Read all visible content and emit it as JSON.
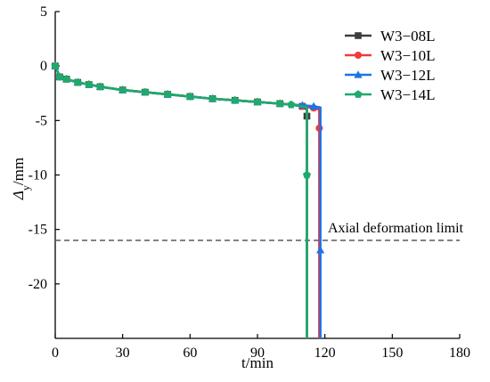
{
  "chart_data": {
    "type": "line",
    "title": "",
    "xlabel": "t/min",
    "ylabel_main": "Δ",
    "ylabel_sub": "y",
    "ylabel_unit": "/mm",
    "xlim": [
      0,
      180
    ],
    "ylim": [
      -25,
      5
    ],
    "xticks": [
      0,
      30,
      60,
      90,
      120,
      150,
      180
    ],
    "yticks": [
      5,
      0,
      -5,
      -10,
      -15,
      -20
    ],
    "grid": false,
    "legend_position": "top-right",
    "reference_line": {
      "y": -16,
      "label": "Axial deformation limit",
      "style": "dashed",
      "color": "#666666"
    },
    "series": [
      {
        "name": "W3−08L",
        "color": "#3d3d3d",
        "marker": "square",
        "x": [
          0,
          2,
          5,
          10,
          15,
          20,
          30,
          40,
          50,
          60,
          70,
          80,
          90,
          100,
          105,
          110,
          112,
          112,
          112
        ],
        "y": [
          0,
          -1.0,
          -1.2,
          -1.5,
          -1.7,
          -1.9,
          -2.2,
          -2.4,
          -2.6,
          -2.8,
          -3.0,
          -3.15,
          -3.3,
          -3.45,
          -3.55,
          -3.7,
          -3.8,
          -4.6,
          -25
        ],
        "marker_x": [
          0,
          2,
          5,
          10,
          15,
          20,
          30,
          40,
          50,
          60,
          70,
          80,
          90,
          100,
          110,
          112
        ],
        "marker_y": [
          0,
          -1.0,
          -1.2,
          -1.5,
          -1.7,
          -1.9,
          -2.2,
          -2.4,
          -2.6,
          -2.8,
          -3.0,
          -3.15,
          -3.3,
          -3.45,
          -3.7,
          -4.6
        ]
      },
      {
        "name": "W3−10L",
        "color": "#ef3b3b",
        "marker": "circle",
        "x": [
          0,
          2,
          5,
          10,
          15,
          20,
          30,
          40,
          50,
          60,
          70,
          80,
          90,
          100,
          105,
          110,
          115,
          117.5,
          117.5,
          117.5
        ],
        "y": [
          0,
          -1.0,
          -1.2,
          -1.5,
          -1.7,
          -1.9,
          -2.2,
          -2.4,
          -2.6,
          -2.8,
          -3.0,
          -3.15,
          -3.3,
          -3.45,
          -3.55,
          -3.7,
          -3.85,
          -4.0,
          -5.7,
          -25
        ],
        "marker_x": [
          0,
          2,
          5,
          10,
          15,
          20,
          30,
          40,
          50,
          60,
          70,
          80,
          90,
          100,
          110,
          115,
          117.5
        ],
        "marker_y": [
          0,
          -1.0,
          -1.2,
          -1.5,
          -1.7,
          -1.9,
          -2.2,
          -2.4,
          -2.6,
          -2.8,
          -3.0,
          -3.15,
          -3.3,
          -3.45,
          -3.7,
          -3.85,
          -5.7
        ]
      },
      {
        "name": "W3−12L",
        "color": "#1a74e8",
        "marker": "triangle",
        "x": [
          0,
          2,
          5,
          10,
          15,
          20,
          30,
          40,
          50,
          60,
          70,
          80,
          90,
          100,
          105,
          110,
          115,
          118,
          118,
          118
        ],
        "y": [
          0,
          -1.0,
          -1.2,
          -1.5,
          -1.7,
          -1.9,
          -2.2,
          -2.4,
          -2.6,
          -2.8,
          -3.0,
          -3.15,
          -3.3,
          -3.45,
          -3.55,
          -3.6,
          -3.7,
          -3.8,
          -16.9,
          -25
        ],
        "marker_x": [
          0,
          2,
          5,
          10,
          15,
          20,
          30,
          40,
          50,
          60,
          70,
          80,
          90,
          100,
          110,
          115,
          118
        ],
        "marker_y": [
          0,
          -1.0,
          -1.2,
          -1.5,
          -1.7,
          -1.9,
          -2.2,
          -2.4,
          -2.6,
          -2.8,
          -3.0,
          -3.15,
          -3.3,
          -3.45,
          -3.6,
          -3.7,
          -16.9
        ]
      },
      {
        "name": "W3−14L",
        "color": "#1faa6b",
        "marker": "pentagon",
        "x": [
          0,
          2,
          5,
          10,
          15,
          20,
          30,
          40,
          50,
          60,
          70,
          80,
          90,
          100,
          105,
          110,
          112,
          112,
          112
        ],
        "y": [
          0,
          -1.0,
          -1.2,
          -1.5,
          -1.7,
          -1.9,
          -2.2,
          -2.4,
          -2.6,
          -2.8,
          -3.0,
          -3.15,
          -3.3,
          -3.45,
          -3.55,
          -3.7,
          -3.8,
          -10.0,
          -25
        ],
        "marker_x": [
          0,
          2,
          5,
          10,
          15,
          20,
          30,
          40,
          50,
          60,
          70,
          80,
          90,
          100,
          105,
          112
        ],
        "marker_y": [
          0,
          -1.0,
          -1.2,
          -1.5,
          -1.7,
          -1.9,
          -2.2,
          -2.4,
          -2.6,
          -2.8,
          -3.0,
          -3.15,
          -3.3,
          -3.45,
          -3.55,
          -10.0
        ]
      }
    ]
  }
}
